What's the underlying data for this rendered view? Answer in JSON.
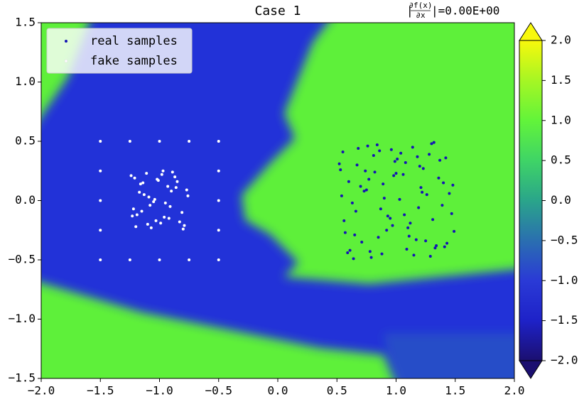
{
  "chart_data": {
    "type": "scatter",
    "title": "Case 1",
    "annotation": {
      "prefix": "|",
      "numerator": "∂f(x)",
      "denominator": "∂x",
      "text": "|=0.00E+00"
    },
    "xlim": [
      -2,
      2
    ],
    "ylim": [
      -1.5,
      1.5
    ],
    "xticks": [
      {
        "value": -2,
        "label": "−2.0"
      },
      {
        "value": -1.5,
        "label": "−1.5"
      },
      {
        "value": -1,
        "label": "−1.0"
      },
      {
        "value": -0.5,
        "label": "−0.5"
      },
      {
        "value": 0,
        "label": "0.0"
      },
      0.5,
      {
        "value": 1,
        "label": "1.0"
      },
      1.5,
      {
        "value": 2,
        "label": "2.0"
      }
    ],
    "yticks": [
      {
        "value": -1.5,
        "label": "−1.5"
      },
      {
        "value": -1,
        "label": "−1.0"
      },
      {
        "value": -0.5,
        "label": "−0.5"
      },
      {
        "value": 0,
        "label": "0.0"
      },
      0.5,
      {
        "value": 1,
        "label": "1.0"
      },
      1.5
    ],
    "legend": "upper left",
    "series": [
      {
        "name": "real samples",
        "color": "#1414b4",
        "x": [
          0.52,
          0.61,
          0.73,
          0.84,
          0.95,
          1.06,
          1.17,
          1.28,
          1.39,
          1.48,
          0.57,
          0.68,
          0.79,
          0.9,
          1.01,
          1.12,
          1.23,
          1.34,
          1.45,
          0.55,
          0.66,
          0.77,
          0.88,
          0.99,
          1.1,
          1.21,
          1.32,
          1.43,
          0.63,
          0.74,
          0.85,
          0.96,
          1.07,
          1.18,
          1.29,
          1.4,
          0.54,
          0.65,
          0.76,
          0.87,
          0.98,
          1.09,
          1.2,
          1.31,
          1.42,
          0.59,
          0.7,
          0.81,
          0.92,
          1.03,
          1.14,
          1.25,
          1.36,
          1.47,
          0.53,
          0.64,
          0.75,
          0.86,
          0.97,
          1.08,
          1.19,
          1.3,
          1.41,
          0.6,
          0.71,
          0.82,
          0.93,
          1.04,
          1.15,
          1.26,
          1.37,
          1.49,
          0.56,
          0.67,
          0.78,
          0.89,
          1.0,
          1.11,
          1.22,
          1.33
        ],
        "values": [
          0.31,
          -0.42,
          0.08,
          0.47,
          -0.15,
          0.22,
          -0.33,
          0.39,
          -0.04,
          0.13,
          -0.27,
          0.44,
          -0.48,
          0.02,
          0.35,
          -0.19,
          0.27,
          -0.38,
          0.06,
          0.41,
          -0.09,
          0.18,
          -0.45,
          0.33,
          -0.23,
          0.11,
          0.49,
          -0.36,
          -0.02,
          0.25,
          -0.31,
          0.43,
          -0.12,
          0.37,
          -0.47,
          0.15,
          0.04,
          -0.29,
          0.46,
          -0.07,
          0.21,
          -0.41,
          0.29,
          -0.16,
          0.36,
          -0.44,
          0.12,
          0.38,
          -0.25,
          0.01,
          0.45,
          -0.34,
          0.19,
          -0.11,
          0.26,
          -0.49,
          0.09,
          0.42,
          -0.21,
          0.32,
          -0.06,
          0.48,
          -0.39,
          0.16,
          -0.35,
          0.24,
          -0.13,
          0.4,
          -0.46,
          0.05,
          0.34,
          -0.26,
          -0.17,
          0.3,
          -0.43,
          0.14,
          0.23,
          -0.3,
          0.07,
          -0.4
        ]
      },
      {
        "name": "fake samples",
        "color": "#ffffff",
        "x": [
          -1.5,
          -1.25,
          -1,
          -0.75,
          -0.5,
          -1.5,
          -0.5,
          -1.5,
          -0.5,
          -1.5,
          -0.5,
          -1.5,
          -1.25,
          -1,
          -0.75,
          -0.5,
          -1.24,
          -1.19,
          -1.13,
          -1.07,
          -1.01,
          -0.95,
          -0.89,
          -0.83,
          -0.77,
          -1.22,
          -1.16,
          -1.1,
          -1.04,
          -0.98,
          -0.92,
          -0.86,
          -0.8,
          -1.21,
          -1.15,
          -1.09,
          -1.03,
          -0.97,
          -0.91,
          -0.85,
          -0.79,
          -1.23,
          -1.17,
          -1.11,
          -1.05,
          -0.99,
          -0.93,
          -0.87,
          -0.81,
          -0.76,
          -1.2,
          -1.14,
          -1.08,
          -1.02,
          -0.96,
          -0.9
        ],
        "values": [
          0.5,
          0.5,
          0.5,
          0.5,
          0.5,
          0.25,
          0.25,
          0,
          0,
          -0.25,
          -0.25,
          -0.5,
          -0.5,
          -0.5,
          -0.5,
          -0.5,
          0.21,
          -0.12,
          0.05,
          -0.23,
          0.17,
          -0.02,
          0.24,
          -0.18,
          0.09,
          -0.07,
          0.14,
          -0.2,
          0.01,
          0.22,
          -0.15,
          0.11,
          -0.24,
          0.19,
          -0.09,
          0.03,
          -0.17,
          0.25,
          -0.05,
          0.16,
          -0.21,
          -0.13,
          0.07,
          0.23,
          -0.01,
          -0.19,
          0.12,
          0.2,
          -0.1,
          0.04,
          -0.22,
          0.15,
          -0.04,
          0.18,
          -0.14,
          0.08
        ]
      }
    ],
    "colorbar": {
      "lim": [
        -2,
        2
      ],
      "ticks": [
        {
          "value": -2,
          "label": "−2.0"
        },
        {
          "value": -1.5,
          "label": "−1.5"
        },
        {
          "value": -1,
          "label": "−1.0"
        },
        {
          "value": -0.5,
          "label": "−0.5"
        },
        {
          "value": 0,
          "label": "0.0"
        },
        0.5,
        {
          "value": 1,
          "label": "1.0"
        },
        1.5,
        {
          "value": 2,
          "label": "2.0"
        }
      ],
      "colors": [
        "#1b0f70",
        "#1e22c8",
        "#2a3ad6",
        "#2a6fb0",
        "#2aa58a",
        "#3fd466",
        "#62f43a",
        "#a6f624",
        "#f8f80c"
      ]
    }
  }
}
